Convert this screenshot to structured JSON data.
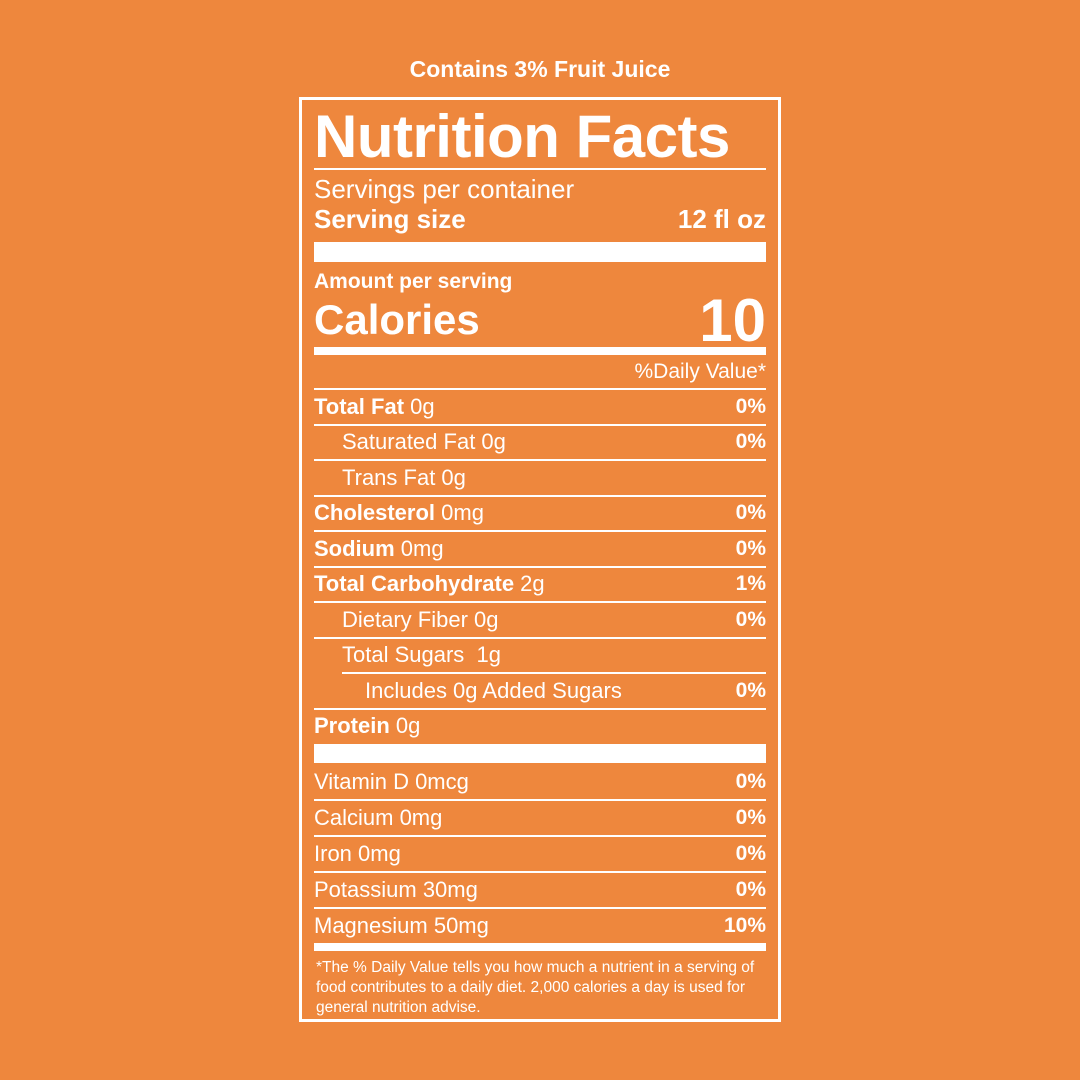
{
  "top_note": "Contains 3% Fruit Juice",
  "title": "Nutrition Facts",
  "servings_per_container_label": "Servings per container",
  "serving_size_label": "Serving size",
  "serving_size_value": "12 fl oz",
  "amount_per_serving": "Amount per serving",
  "calories_label": "Calories",
  "calories_value": "10",
  "daily_value_header": "%Daily Value*",
  "nutrients": [
    {
      "name": "Total Fat",
      "amount": " 0g",
      "dv": "0%"
    },
    {
      "name": "",
      "amount": "Saturated Fat 0g",
      "dv": "0%"
    },
    {
      "name": "",
      "amount": "Trans Fat 0g",
      "dv": ""
    },
    {
      "name": "Cholesterol",
      "amount": " 0mg",
      "dv": "0%"
    },
    {
      "name": "Sodium",
      "amount": " 0mg",
      "dv": "0%"
    },
    {
      "name": "Total Carbohydrate",
      "amount": " 2g",
      "dv": "1%"
    },
    {
      "name": "",
      "amount": "Dietary Fiber 0g",
      "dv": "0%"
    },
    {
      "name": "",
      "amount": "Total Sugars  1g",
      "dv": ""
    },
    {
      "name": "",
      "amount": "Includes 0g Added Sugars",
      "dv": "0%"
    },
    {
      "name": "Protein",
      "amount": " 0g",
      "dv": ""
    }
  ],
  "vitamins": [
    {
      "label": "Vitamin D 0mcg",
      "dv": "0%"
    },
    {
      "label": "Calcium 0mg",
      "dv": "0%"
    },
    {
      "label": "Iron 0mg",
      "dv": "0%"
    },
    {
      "label": "Potassium 30mg",
      "dv": "0%"
    },
    {
      "label": "Magnesium 50mg",
      "dv": "10%"
    }
  ],
  "footnote": "*The % Daily Value tells you how much a nutrient in a serving of food contributes to a daily diet. 2,000 calories a day is used for general nutrition advise.",
  "colors": {
    "background": "#EE873D",
    "foreground": "#FFFFFF"
  }
}
